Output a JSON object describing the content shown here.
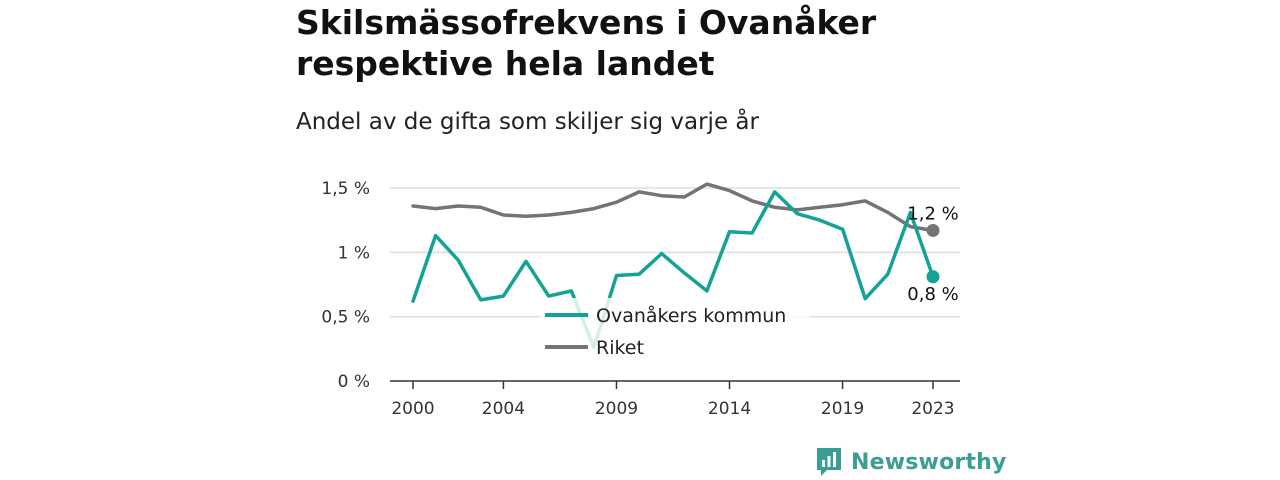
{
  "header": {
    "title": "Skilsmässofrekvens i Ovanåker respektive hela landet",
    "subtitle": "Andel av de gifta som skiljer sig varje år"
  },
  "logo": {
    "text": "Newsworthy",
    "icon": "newsworthy-chart-icon"
  },
  "colors": {
    "ovanaker": "#13a396",
    "riket": "#747474",
    "grid": "#dddddd",
    "axis": "#333333"
  },
  "chart_data": {
    "type": "line",
    "title": "Skilsmässofrekvens i Ovanåker respektive hela landet",
    "subtitle": "Andel av de gifta som skiljer sig varje år",
    "x": [
      2000,
      2001,
      2002,
      2003,
      2004,
      2005,
      2006,
      2007,
      2008,
      2009,
      2010,
      2011,
      2012,
      2013,
      2014,
      2015,
      2016,
      2017,
      2018,
      2019,
      2020,
      2021,
      2022,
      2023
    ],
    "x_ticks": [
      2000,
      2004,
      2009,
      2014,
      2019,
      2023
    ],
    "x_tick_labels": [
      "2000",
      "2004",
      "2009",
      "2014",
      "2019",
      "2023"
    ],
    "ylim": [
      0,
      1.5
    ],
    "y_ticks": [
      0,
      0.5,
      1,
      1.5
    ],
    "y_tick_labels": [
      "0 %",
      "0,5 %",
      "1 %",
      "1,5 %"
    ],
    "grid": true,
    "legend_position": "center",
    "series": [
      {
        "name": "Ovanåkers kommun",
        "color": "#13a396",
        "values": [
          0.62,
          1.13,
          0.94,
          0.63,
          0.66,
          0.93,
          0.66,
          0.7,
          0.26,
          0.82,
          0.83,
          0.99,
          0.84,
          0.7,
          1.16,
          1.15,
          1.47,
          1.3,
          1.25,
          1.18,
          0.64,
          0.83,
          1.31,
          0.81
        ],
        "end_label": "0,8 %"
      },
      {
        "name": "Riket",
        "color": "#747474",
        "values": [
          1.36,
          1.34,
          1.36,
          1.35,
          1.29,
          1.28,
          1.29,
          1.31,
          1.34,
          1.39,
          1.47,
          1.44,
          1.43,
          1.53,
          1.48,
          1.4,
          1.35,
          1.33,
          1.35,
          1.37,
          1.4,
          1.31,
          1.2,
          1.17
        ],
        "end_label": "1,2 %"
      }
    ]
  }
}
